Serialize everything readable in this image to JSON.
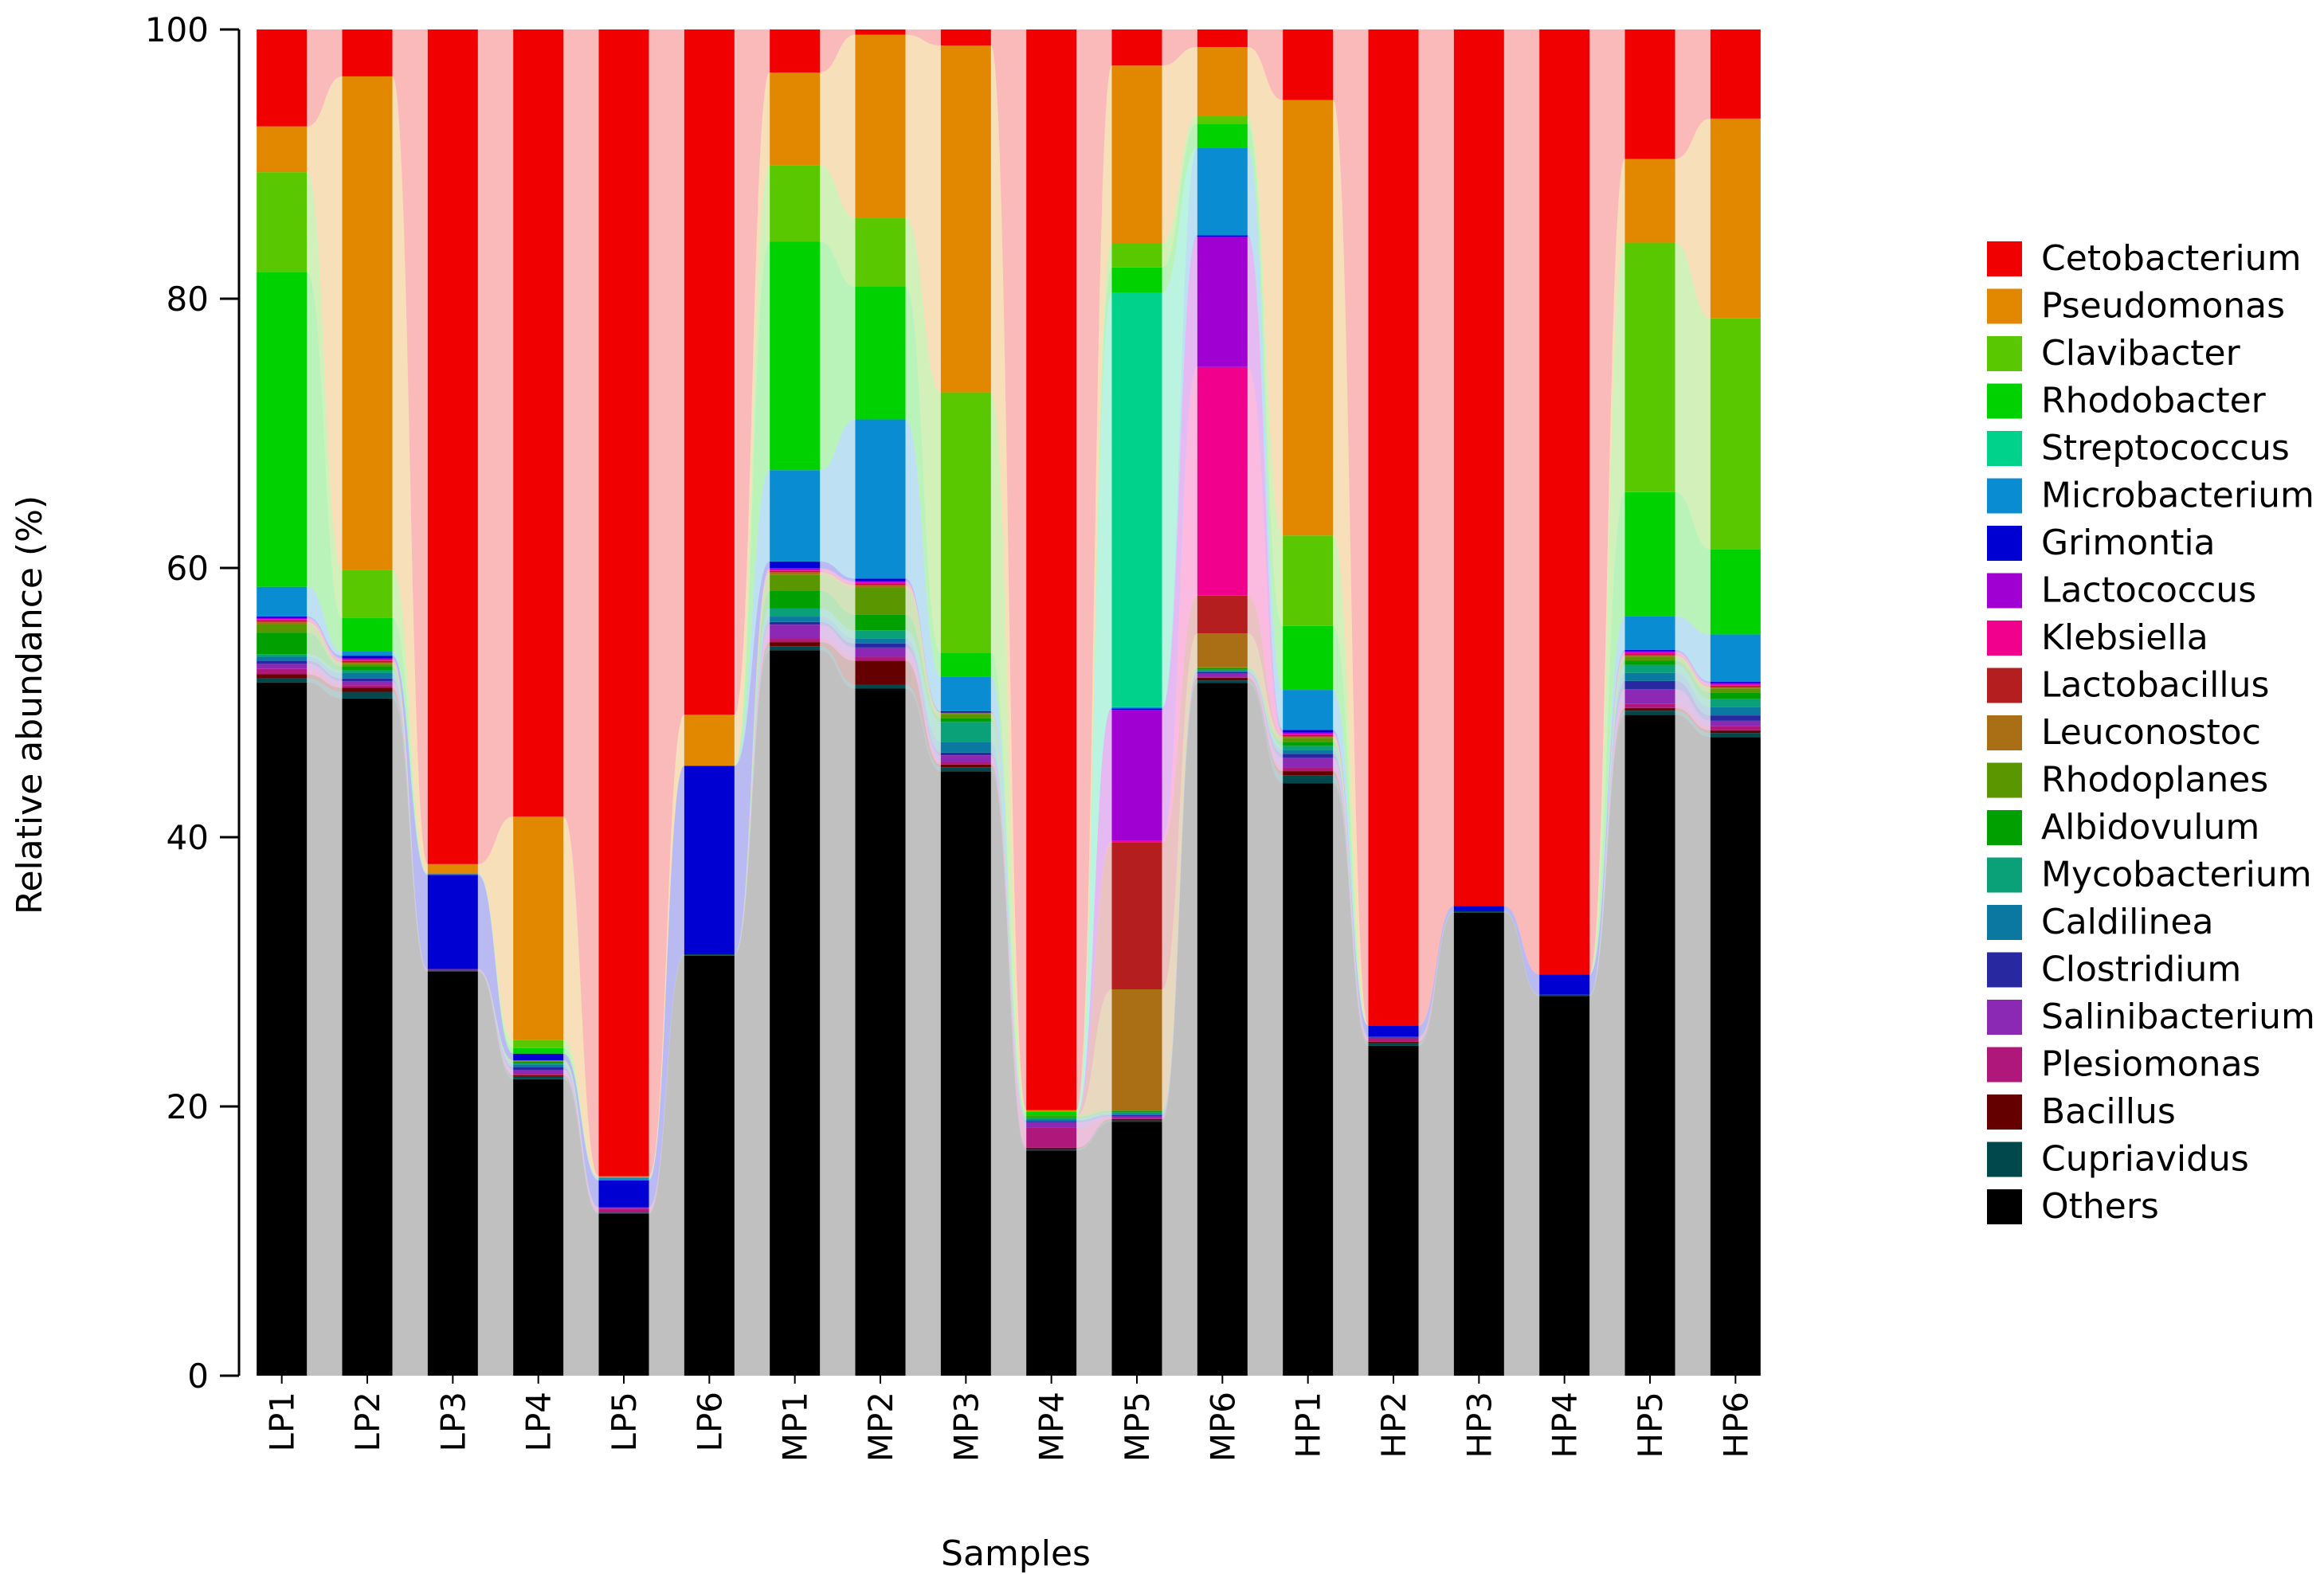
{
  "chart_data": {
    "type": "bar",
    "stacked": true,
    "flow_ribbons": true,
    "xlabel": "Samples",
    "ylabel": "Relative abundance (%)",
    "ylim": [
      0,
      100
    ],
    "yticks": [
      "0",
      "20",
      "40",
      "60",
      "80",
      "100"
    ],
    "legend_position": "right",
    "categories": [
      "LP1",
      "LP2",
      "LP3",
      "LP4",
      "LP5",
      "LP6",
      "MP1",
      "MP2",
      "MP3",
      "MP4",
      "MP5",
      "MP6",
      "HP1",
      "HP2",
      "HP3",
      "HP4",
      "HP5",
      "HP6"
    ],
    "series": [
      {
        "name": "Others",
        "color": "#000000",
        "values": [
          51.5,
          50.5,
          30.0,
          22.0,
          12.0,
          31.2,
          54.0,
          51.8,
          45.3,
          16.8,
          19.0,
          51.5,
          44.5,
          24.5,
          34.4,
          28.2,
          49.0,
          47.3
        ]
      },
      {
        "name": "Cupriavidus",
        "color": "#00484c",
        "values": [
          0.3,
          0.5,
          0.1,
          0.2,
          0.1,
          0.1,
          0.3,
          0.3,
          0.3,
          0.1,
          0.1,
          0.2,
          0.6,
          0.2,
          0.1,
          0.1,
          0.3,
          0.3
        ]
      },
      {
        "name": "Bacillus",
        "color": "#640000",
        "values": [
          0.3,
          0.3,
          0.0,
          0.1,
          0.0,
          0.0,
          0.3,
          1.8,
          0.2,
          0.1,
          0.1,
          0.2,
          0.3,
          0.1,
          0.0,
          0.0,
          0.2,
          0.2
        ]
      },
      {
        "name": "Plesiomonas",
        "color": "#b0177a",
        "values": [
          0.4,
          0.2,
          0.1,
          0.1,
          0.3,
          0.0,
          0.3,
          0.3,
          0.2,
          1.5,
          0.1,
          0.1,
          0.3,
          0.3,
          0.0,
          0.0,
          0.3,
          0.3
        ]
      },
      {
        "name": "Salinibacterium",
        "color": "#8b28b4",
        "values": [
          0.4,
          0.3,
          0.0,
          0.3,
          0.1,
          0.0,
          1.0,
          0.7,
          0.5,
          0.4,
          0.1,
          0.2,
          0.7,
          0.0,
          0.0,
          0.0,
          1.1,
          0.4
        ]
      },
      {
        "name": "Clostridium",
        "color": "#2828a0",
        "values": [
          0.2,
          0.2,
          0.0,
          0.2,
          0.0,
          0.0,
          0.2,
          0.3,
          0.2,
          0.1,
          0.1,
          0.1,
          0.3,
          0.1,
          0.0,
          0.0,
          0.6,
          0.4
        ]
      },
      {
        "name": "Caldilinea",
        "color": "#0a78a0",
        "values": [
          0.3,
          0.4,
          0.0,
          0.2,
          0.0,
          0.0,
          0.4,
          0.4,
          0.8,
          0.1,
          0.1,
          0.1,
          0.3,
          0.0,
          0.0,
          0.0,
          0.6,
          0.6
        ]
      },
      {
        "name": "Mycobacterium",
        "color": "#0aa078",
        "values": [
          0.2,
          0.2,
          0.0,
          0.1,
          0.0,
          0.0,
          0.6,
          0.6,
          1.5,
          0.1,
          0.1,
          0.1,
          0.3,
          0.0,
          0.0,
          0.0,
          0.6,
          0.6
        ]
      },
      {
        "name": "Albidovulum",
        "color": "#00a000",
        "values": [
          1.6,
          0.3,
          0.0,
          0.1,
          0.0,
          0.0,
          1.3,
          1.2,
          0.3,
          0.1,
          0.1,
          0.1,
          0.3,
          0.0,
          0.0,
          0.0,
          0.3,
          0.5
        ]
      },
      {
        "name": "Rhodoplanes",
        "color": "#5a9600",
        "values": [
          0.6,
          0.2,
          0.0,
          0.1,
          0.0,
          0.0,
          1.2,
          2.0,
          0.3,
          0.1,
          0.1,
          0.1,
          0.3,
          0.0,
          0.0,
          0.0,
          0.3,
          0.3
        ]
      },
      {
        "name": "Leuconostoc",
        "color": "#aa6e14",
        "values": [
          0.2,
          0.1,
          0.0,
          0.0,
          0.0,
          0.0,
          0.2,
          0.2,
          0.1,
          0.0,
          9.0,
          2.5,
          0.1,
          0.0,
          0.0,
          0.0,
          0.1,
          0.1
        ]
      },
      {
        "name": "Lactobacillus",
        "color": "#b41e1e",
        "values": [
          0.1,
          0.1,
          0.0,
          0.0,
          0.0,
          0.0,
          0.1,
          0.1,
          0.0,
          0.0,
          11.0,
          2.8,
          0.1,
          0.0,
          0.0,
          0.0,
          0.1,
          0.1
        ]
      },
      {
        "name": "Klebsiella",
        "color": "#f0008c",
        "values": [
          0.1,
          0.1,
          0.0,
          0.0,
          0.0,
          0.0,
          0.1,
          0.1,
          0.0,
          0.0,
          0.1,
          17.0,
          0.1,
          0.0,
          0.0,
          0.0,
          0.1,
          0.1
        ]
      },
      {
        "name": "Lactococcus",
        "color": "#a000d2",
        "values": [
          0.1,
          0.1,
          0.0,
          0.0,
          0.0,
          0.0,
          0.1,
          0.1,
          0.0,
          0.0,
          9.8,
          9.7,
          0.1,
          0.0,
          0.0,
          0.0,
          0.1,
          0.1
        ]
      },
      {
        "name": "Grimontia",
        "color": "#0000d2",
        "values": [
          0.1,
          0.2,
          7.0,
          0.5,
          2.0,
          14.0,
          0.5,
          0.2,
          0.1,
          0.0,
          0.1,
          0.1,
          0.2,
          0.8,
          0.4,
          1.5,
          0.1,
          0.1
        ]
      },
      {
        "name": "Microbacterium",
        "color": "#0a8cd2",
        "values": [
          2.2,
          0.3,
          0.1,
          0.0,
          0.2,
          0.0,
          6.8,
          12.0,
          2.6,
          0.0,
          0.1,
          6.5,
          3.0,
          0.0,
          0.0,
          0.0,
          2.5,
          3.5
        ]
      },
      {
        "name": "Streptococcus",
        "color": "#00d28c",
        "values": [
          0.0,
          0.0,
          0.0,
          0.0,
          0.0,
          0.0,
          0.0,
          0.0,
          0.0,
          0.0,
          31.0,
          0.0,
          0.0,
          0.0,
          0.0,
          0.0,
          0.0,
          0.0
        ]
      },
      {
        "name": "Rhodobacter",
        "color": "#00d200",
        "values": [
          23.4,
          2.5,
          0.0,
          0.4,
          0.0,
          0.0,
          17.0,
          10.0,
          1.8,
          0.3,
          1.9,
          1.8,
          4.8,
          0.0,
          0.0,
          0.0,
          9.2,
          6.3
        ]
      },
      {
        "name": "Clavibacter",
        "color": "#5ac800",
        "values": [
          7.4,
          3.6,
          0.0,
          0.6,
          0.0,
          0.0,
          5.7,
          5.2,
          19.5,
          0.0,
          1.8,
          0.6,
          6.8,
          0.0,
          0.0,
          0.0,
          18.5,
          17.1
        ]
      },
      {
        "name": "Pseudomonas",
        "color": "#e18700",
        "values": [
          3.4,
          36.8,
          0.7,
          16.6,
          0.1,
          3.8,
          6.9,
          13.8,
          26.0,
          0.1,
          13.3,
          5.1,
          32.7,
          0.0,
          0.0,
          0.0,
          6.2,
          14.8
        ]
      },
      {
        "name": "Cetobacterium",
        "color": "#f00000",
        "values": [
          7.2,
          3.5,
          62.0,
          58.4,
          85.1,
          50.9,
          3.2,
          0.4,
          1.2,
          80.6,
          2.7,
          1.3,
          5.3,
          74.0,
          65.1,
          70.2,
          9.6,
          6.6
        ]
      }
    ],
    "legend_order": [
      "Cetobacterium",
      "Pseudomonas",
      "Clavibacter",
      "Rhodobacter",
      "Streptococcus",
      "Microbacterium",
      "Grimontia",
      "Lactococcus",
      "Klebsiella",
      "Lactobacillus",
      "Leuconostoc",
      "Rhodoplanes",
      "Albidovulum",
      "Mycobacterium",
      "Caldilinea",
      "Clostridium",
      "Salinibacterium",
      "Plesiomonas",
      "Bacillus",
      "Cupriavidus",
      "Others"
    ]
  }
}
